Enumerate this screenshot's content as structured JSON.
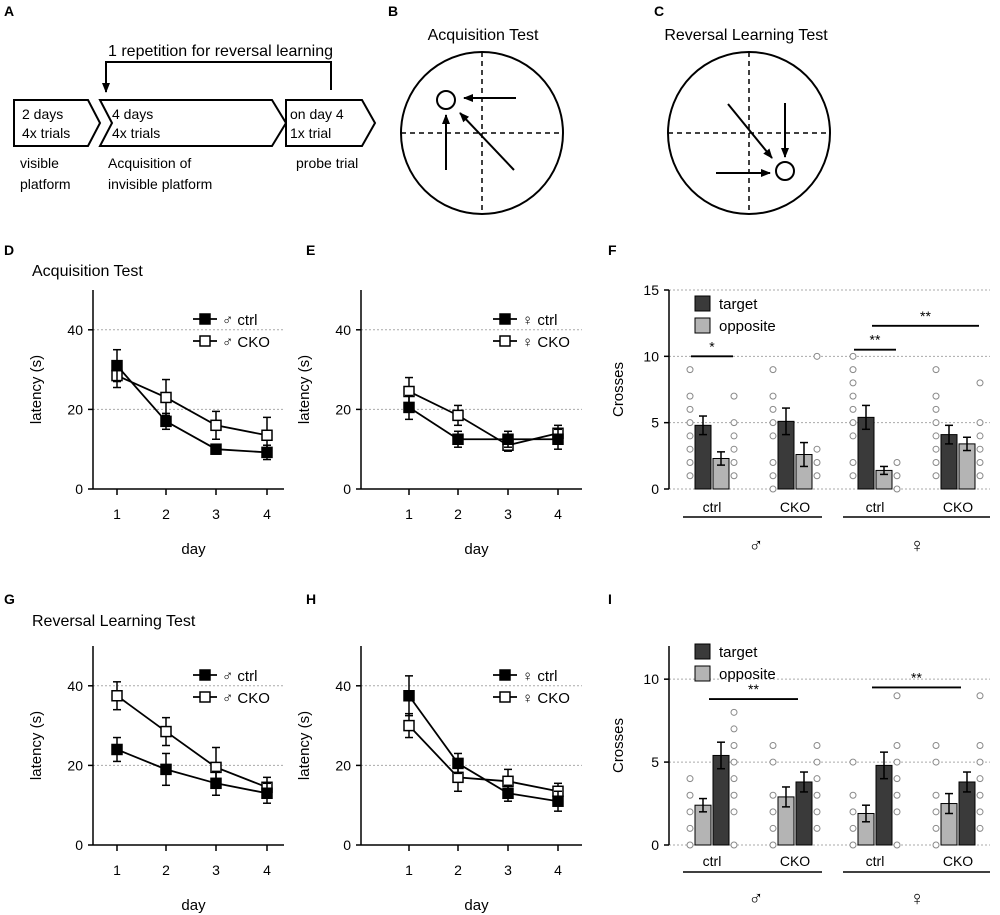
{
  "panels": [
    "A",
    "B",
    "C",
    "D",
    "E",
    "F",
    "G",
    "H",
    "I"
  ],
  "schematic": {
    "repeat_label": "1 repetition for reversal learning",
    "boxes": [
      {
        "line1": "2 days",
        "line2": "4x trials"
      },
      {
        "line1": "4 days",
        "line2": "4x trials"
      },
      {
        "line1": "on day 4",
        "line2": "1x trial"
      }
    ],
    "captions": [
      {
        "line1": "visible",
        "line2": "platform"
      },
      {
        "line1": "Acquisition of",
        "line2": "invisible platform"
      },
      {
        "line1": "probe trial",
        "line2": ""
      }
    ]
  },
  "maze_titles": {
    "acquisition": "Acquisition Test",
    "reversal": "Reversal Learning Test"
  },
  "row_titles": {
    "acquisition": "Acquisition Test",
    "reversal": "Reversal Learning Test"
  },
  "sex_symbols": {
    "male": "♂",
    "female": "♀"
  },
  "chart_data": [
    {
      "id": "D",
      "type": "line",
      "title": "Acquisition Test",
      "xlabel": "day",
      "ylabel": "latency (s)",
      "x": [
        1,
        2,
        3,
        4
      ],
      "xticks": [
        "1",
        "2",
        "3",
        "4"
      ],
      "ylim": [
        0,
        50
      ],
      "yticks": [
        "0",
        "20",
        "40"
      ],
      "series": [
        {
          "name": "♂ ctrl",
          "marker": "filled",
          "values": [
            31,
            17,
            10,
            9.2
          ],
          "err": [
            4,
            2,
            1.2,
            1.8
          ]
        },
        {
          "name": "♂ CKO",
          "marker": "open",
          "values": [
            28.5,
            23,
            16,
            13.5
          ],
          "err": [
            3,
            4.5,
            3.5,
            4.5
          ]
        }
      ]
    },
    {
      "id": "E",
      "type": "line",
      "title": "",
      "xlabel": "day",
      "ylabel": "latency (s)",
      "x": [
        1,
        2,
        3,
        4
      ],
      "xticks": [
        "1",
        "2",
        "3",
        "4"
      ],
      "ylim": [
        0,
        50
      ],
      "yticks": [
        "0",
        "20",
        "40"
      ],
      "series": [
        {
          "name": "♀ ctrl",
          "marker": "filled",
          "values": [
            20.5,
            12.5,
            12.5,
            12.5
          ],
          "err": [
            3,
            2,
            2,
            2.5
          ]
        },
        {
          "name": "♀ CKO",
          "marker": "open",
          "values": [
            24.5,
            18.5,
            11,
            14
          ],
          "err": [
            3.5,
            2.5,
            1.5,
            2
          ]
        }
      ]
    },
    {
      "id": "F",
      "type": "bar",
      "ylabel": "Crosses",
      "ylim": [
        0,
        15
      ],
      "yticks": [
        "0",
        "5",
        "10",
        "15"
      ],
      "legend": [
        "target",
        "opposite"
      ],
      "groups": [
        {
          "label": "ctrl",
          "sex": "male",
          "target": 4.8,
          "target_err": 0.7,
          "opposite": 2.3,
          "opposite_err": 0.5,
          "target_pts": [
            1,
            2,
            3,
            4,
            5,
            6,
            7,
            9
          ],
          "opposite_pts": [
            1,
            2,
            3,
            4,
            5,
            7
          ]
        },
        {
          "label": "CKO",
          "sex": "male",
          "target": 5.1,
          "target_err": 1.0,
          "opposite": 2.6,
          "opposite_err": 0.9,
          "target_pts": [
            0,
            1,
            2,
            4,
            5,
            6,
            7,
            9
          ],
          "opposite_pts": [
            1,
            2,
            3,
            10
          ]
        },
        {
          "label": "ctrl",
          "sex": "female",
          "target": 5.4,
          "target_err": 0.9,
          "opposite": 1.4,
          "opposite_err": 0.3,
          "target_pts": [
            1,
            2,
            4,
            5,
            6,
            7,
            8,
            9,
            10
          ],
          "opposite_pts": [
            0,
            1,
            2
          ]
        },
        {
          "label": "CKO",
          "sex": "female",
          "target": 4.1,
          "target_err": 0.7,
          "opposite": 3.4,
          "opposite_err": 0.5,
          "target_pts": [
            1,
            2,
            3,
            4,
            5,
            6,
            7,
            9
          ],
          "opposite_pts": [
            1,
            2,
            3,
            4,
            5,
            8
          ]
        }
      ],
      "significance": [
        {
          "text": "*",
          "from": 0,
          "to": 1,
          "level": 10
        },
        {
          "text": "**",
          "from": 4,
          "to": 5,
          "level": 10.5
        },
        {
          "text": "**",
          "from": 5,
          "to": 7,
          "level": 12.3
        }
      ]
    },
    {
      "id": "G",
      "type": "line",
      "title": "Reversal Learning Test",
      "xlabel": "day",
      "ylabel": "latency (s)",
      "x": [
        1,
        2,
        3,
        4
      ],
      "xticks": [
        "1",
        "2",
        "3",
        "4"
      ],
      "ylim": [
        0,
        50
      ],
      "yticks": [
        "0",
        "20",
        "40"
      ],
      "series": [
        {
          "name": "♂ ctrl",
          "marker": "filled",
          "values": [
            24,
            19,
            15.5,
            13
          ],
          "err": [
            3,
            4,
            3,
            2.5
          ]
        },
        {
          "name": "♂ CKO",
          "marker": "open",
          "values": [
            37.5,
            28.5,
            19.5,
            14.5
          ],
          "err": [
            3.5,
            3.5,
            5,
            2.5
          ]
        }
      ]
    },
    {
      "id": "H",
      "type": "line",
      "title": "",
      "xlabel": "day",
      "ylabel": "latency (s)",
      "x": [
        1,
        2,
        3,
        4
      ],
      "xticks": [
        "1",
        "2",
        "3",
        "4"
      ],
      "ylim": [
        0,
        50
      ],
      "yticks": [
        "0",
        "20",
        "40"
      ],
      "series": [
        {
          "name": "♀ ctrl",
          "marker": "filled",
          "values": [
            37.5,
            20.5,
            13,
            11
          ],
          "err": [
            5,
            2.5,
            2,
            2.5
          ]
        },
        {
          "name": "♀ CKO",
          "marker": "open",
          "values": [
            30,
            17,
            16,
            13.5
          ],
          "err": [
            3,
            3.5,
            3,
            2
          ]
        }
      ]
    },
    {
      "id": "I",
      "type": "bar",
      "ylabel": "Crosses",
      "ylim": [
        0,
        12
      ],
      "yticks": [
        "0",
        "5",
        "10"
      ],
      "legend": [
        "target",
        "opposite"
      ],
      "groups": [
        {
          "label": "ctrl",
          "sex": "male",
          "target": 5.4,
          "target_err": 0.8,
          "opposite": 2.4,
          "opposite_err": 0.4,
          "target_pts": [
            0,
            2,
            3,
            4,
            5,
            6,
            7,
            8
          ],
          "opposite_pts": [
            0,
            1,
            2,
            3,
            4
          ]
        },
        {
          "label": "CKO",
          "sex": "male",
          "target": 3.8,
          "target_err": 0.6,
          "opposite": 2.9,
          "opposite_err": 0.6,
          "target_pts": [
            1,
            2,
            3,
            4,
            5,
            6
          ],
          "opposite_pts": [
            0,
            1,
            2,
            3,
            5,
            6
          ]
        },
        {
          "label": "ctrl",
          "sex": "female",
          "target": 4.8,
          "target_err": 0.8,
          "opposite": 1.9,
          "opposite_err": 0.5,
          "target_pts": [
            0,
            2,
            3,
            4,
            5,
            6,
            9
          ],
          "opposite_pts": [
            0,
            1,
            2,
            3,
            5
          ]
        },
        {
          "label": "CKO",
          "sex": "female",
          "target": 3.8,
          "target_err": 0.6,
          "opposite": 2.5,
          "opposite_err": 0.6,
          "target_pts": [
            1,
            2,
            3,
            4,
            5,
            6,
            9
          ],
          "opposite_pts": [
            0,
            1,
            2,
            3,
            5,
            6
          ]
        }
      ],
      "significance": [
        {
          "text": "**",
          "from": 1,
          "to": 2,
          "level": 8.8
        },
        {
          "text": "**",
          "from": 5,
          "to": 6,
          "level": 9.5
        }
      ]
    }
  ]
}
